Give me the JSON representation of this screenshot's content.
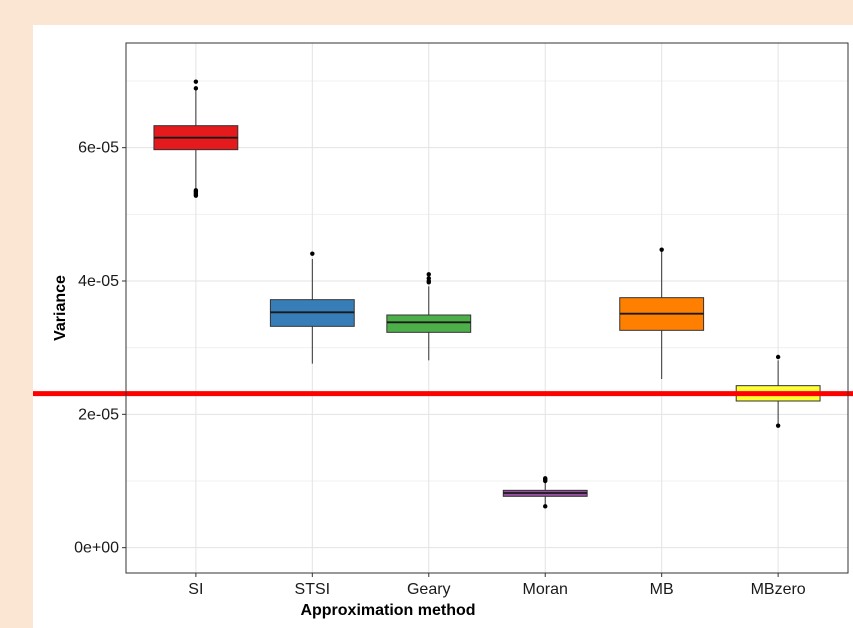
{
  "chart_data": {
    "type": "box",
    "title": "",
    "xlabel": "Approximation method",
    "ylabel": "Variance",
    "ylim": [
      -3.8e-06,
      7.57e-05
    ],
    "y_ticks": [
      {
        "value": 0,
        "label": "0e+00"
      },
      {
        "value": 2e-05,
        "label": "2e-05"
      },
      {
        "value": 4e-05,
        "label": "4e-05"
      },
      {
        "value": 6e-05,
        "label": "6e-05"
      }
    ],
    "grid": true,
    "legend": "none",
    "reference_line": {
      "value": 2.31e-05,
      "color": "#ff0000"
    },
    "categories": [
      "SI",
      "STSI",
      "Geary",
      "Moran",
      "MB",
      "MBzero"
    ],
    "boxes": [
      {
        "category": "SI",
        "color": "#e41a1c",
        "whisker_low": 5.38e-05,
        "q1": 5.97e-05,
        "median": 6.15e-05,
        "q3": 6.33e-05,
        "whisker_high": 6.87e-05,
        "outliers": [
          6.99e-05,
          6.89e-05,
          5.36e-05,
          5.34e-05,
          5.32e-05,
          5.3e-05,
          5.28e-05
        ]
      },
      {
        "category": "STSI",
        "color": "#377eb8",
        "whisker_low": 2.76e-05,
        "q1": 3.32e-05,
        "median": 3.53e-05,
        "q3": 3.72e-05,
        "whisker_high": 4.33e-05,
        "outliers": [
          4.41e-05
        ]
      },
      {
        "category": "Geary",
        "color": "#4daf4a",
        "whisker_low": 2.81e-05,
        "q1": 3.23e-05,
        "median": 3.38e-05,
        "q3": 3.49e-05,
        "whisker_high": 3.92e-05,
        "outliers": [
          4.1e-05,
          4.04e-05,
          4e-05,
          3.98e-05
        ]
      },
      {
        "category": "Moran",
        "color": "#984ea3",
        "whisker_low": 6.3e-06,
        "q1": 7.7e-06,
        "median": 8.2e-06,
        "q3": 8.6e-06,
        "whisker_high": 9.9e-06,
        "outliers": [
          1.04e-05,
          1.02e-05,
          1e-05,
          6.2e-06
        ]
      },
      {
        "category": "MB",
        "color": "#ff7f00",
        "whisker_low": 2.53e-05,
        "q1": 3.26e-05,
        "median": 3.51e-05,
        "q3": 3.75e-05,
        "whisker_high": 4.46e-05,
        "outliers": [
          4.47e-05
        ]
      },
      {
        "category": "MBzero",
        "color": "#ffff33",
        "whisker_low": 1.85e-05,
        "q1": 2.2e-05,
        "median": 2.31e-05,
        "q3": 2.43e-05,
        "whisker_high": 2.81e-05,
        "outliers": [
          2.86e-05,
          1.83e-05
        ]
      }
    ]
  }
}
